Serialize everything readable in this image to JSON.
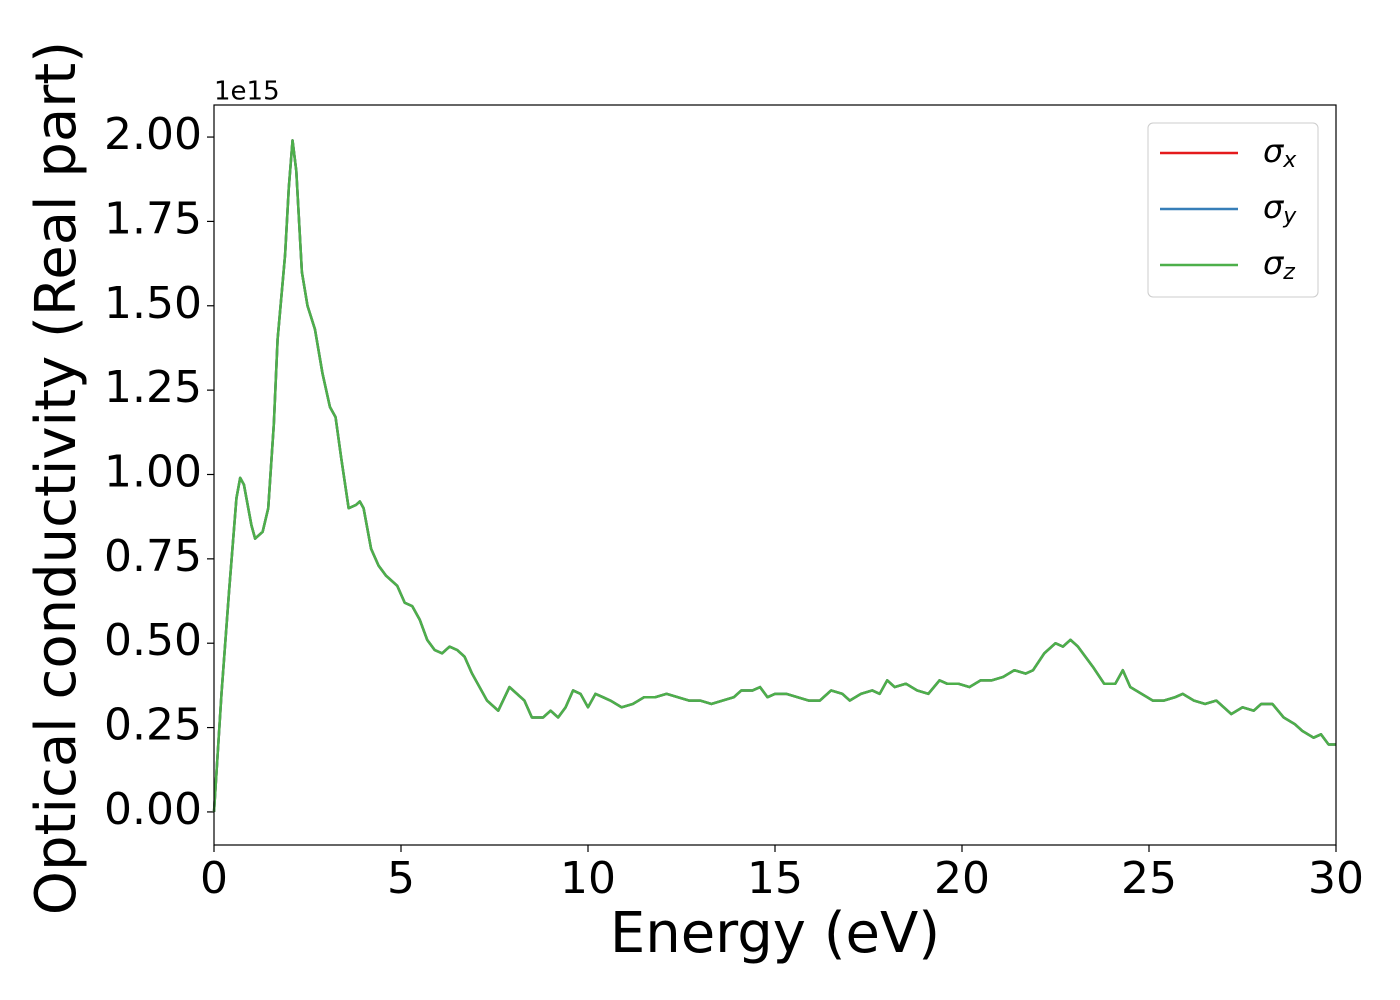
{
  "chart_data": {
    "type": "line",
    "xlabel": "Energy (eV)",
    "ylabel": "Optical conductivity (Real part)",
    "y_offset_label": "1e15",
    "legend": "upper right",
    "grid": false,
    "xlim": [
      0,
      30
    ],
    "xticks": [
      0,
      5,
      10,
      15,
      20,
      25,
      30
    ],
    "ylim": [
      -0.098,
      2.095
    ],
    "yticks": [
      {
        "value": 0,
        "label": "0.00"
      },
      0.25,
      {
        "value": 0.5,
        "label": "0.50"
      },
      0.75,
      {
        "value": 1,
        "label": "1.00"
      },
      1.25,
      {
        "value": 1.5,
        "label": "1.50"
      },
      1.75,
      {
        "value": 2,
        "label": "2.00"
      }
    ],
    "x": [
      0,
      0.2,
      0.4,
      0.6,
      0.7,
      0.8,
      1.0,
      1.1,
      1.3,
      1.45,
      1.6,
      1.7,
      1.9,
      2.0,
      2.1,
      2.2,
      2.35,
      2.5,
      2.7,
      2.9,
      3.1,
      3.25,
      3.4,
      3.6,
      3.8,
      3.9,
      4.0,
      4.2,
      4.4,
      4.6,
      4.9,
      5.1,
      5.3,
      5.5,
      5.7,
      5.9,
      6.1,
      6.3,
      6.5,
      6.7,
      6.9,
      7.1,
      7.3,
      7.6,
      7.9,
      8.1,
      8.3,
      8.5,
      8.8,
      9.0,
      9.2,
      9.4,
      9.6,
      9.8,
      10.0,
      10.2,
      10.4,
      10.6,
      10.9,
      11.2,
      11.5,
      11.8,
      12.1,
      12.4,
      12.7,
      13.0,
      13.3,
      13.6,
      13.9,
      14.1,
      14.4,
      14.6,
      14.8,
      15.0,
      15.3,
      15.6,
      15.9,
      16.2,
      16.5,
      16.8,
      17.0,
      17.3,
      17.6,
      17.8,
      18.0,
      18.2,
      18.5,
      18.8,
      19.1,
      19.4,
      19.6,
      19.9,
      20.2,
      20.5,
      20.8,
      21.1,
      21.4,
      21.7,
      21.9,
      22.2,
      22.5,
      22.7,
      22.9,
      23.1,
      23.3,
      23.5,
      23.8,
      24.1,
      24.3,
      24.5,
      24.8,
      25.1,
      25.4,
      25.7,
      25.9,
      26.2,
      26.5,
      26.8,
      27.0,
      27.2,
      27.5,
      27.8,
      28.0,
      28.3,
      28.6,
      28.9,
      29.1,
      29.4,
      29.6,
      29.8,
      30.0
    ],
    "series": [
      {
        "name": "σx",
        "color": "#e41a1c",
        "values": [
          0.0,
          0.35,
          0.65,
          0.93,
          0.99,
          0.97,
          0.85,
          0.81,
          0.83,
          0.9,
          1.15,
          1.4,
          1.65,
          1.85,
          1.99,
          1.9,
          1.6,
          1.5,
          1.43,
          1.3,
          1.2,
          1.17,
          1.05,
          0.9,
          0.91,
          0.92,
          0.9,
          0.78,
          0.73,
          0.7,
          0.67,
          0.62,
          0.61,
          0.57,
          0.51,
          0.48,
          0.47,
          0.49,
          0.48,
          0.46,
          0.41,
          0.37,
          0.33,
          0.3,
          0.37,
          0.35,
          0.33,
          0.28,
          0.28,
          0.3,
          0.28,
          0.31,
          0.36,
          0.35,
          0.31,
          0.35,
          0.34,
          0.33,
          0.31,
          0.32,
          0.34,
          0.34,
          0.35,
          0.34,
          0.33,
          0.33,
          0.32,
          0.33,
          0.34,
          0.36,
          0.36,
          0.37,
          0.34,
          0.35,
          0.35,
          0.34,
          0.33,
          0.33,
          0.36,
          0.35,
          0.33,
          0.35,
          0.36,
          0.35,
          0.39,
          0.37,
          0.38,
          0.36,
          0.35,
          0.39,
          0.38,
          0.38,
          0.37,
          0.39,
          0.39,
          0.4,
          0.42,
          0.41,
          0.42,
          0.47,
          0.5,
          0.49,
          0.51,
          0.49,
          0.46,
          0.43,
          0.38,
          0.38,
          0.42,
          0.37,
          0.35,
          0.33,
          0.33,
          0.34,
          0.35,
          0.33,
          0.32,
          0.33,
          0.31,
          0.29,
          0.31,
          0.3,
          0.32,
          0.32,
          0.28,
          0.26,
          0.24,
          0.22,
          0.23,
          0.2,
          0.2
        ]
      },
      {
        "name": "σy",
        "color": "#377eb8",
        "values": [
          0.0,
          0.35,
          0.65,
          0.93,
          0.99,
          0.97,
          0.85,
          0.81,
          0.83,
          0.9,
          1.15,
          1.4,
          1.65,
          1.85,
          1.99,
          1.9,
          1.6,
          1.5,
          1.43,
          1.3,
          1.2,
          1.17,
          1.05,
          0.9,
          0.91,
          0.92,
          0.9,
          0.78,
          0.73,
          0.7,
          0.67,
          0.62,
          0.61,
          0.57,
          0.51,
          0.48,
          0.47,
          0.49,
          0.48,
          0.46,
          0.41,
          0.37,
          0.33,
          0.3,
          0.37,
          0.35,
          0.33,
          0.28,
          0.28,
          0.3,
          0.28,
          0.31,
          0.36,
          0.35,
          0.31,
          0.35,
          0.34,
          0.33,
          0.31,
          0.32,
          0.34,
          0.34,
          0.35,
          0.34,
          0.33,
          0.33,
          0.32,
          0.33,
          0.34,
          0.36,
          0.36,
          0.37,
          0.34,
          0.35,
          0.35,
          0.34,
          0.33,
          0.33,
          0.36,
          0.35,
          0.33,
          0.35,
          0.36,
          0.35,
          0.39,
          0.37,
          0.38,
          0.36,
          0.35,
          0.39,
          0.38,
          0.38,
          0.37,
          0.39,
          0.39,
          0.4,
          0.42,
          0.41,
          0.42,
          0.47,
          0.5,
          0.49,
          0.51,
          0.49,
          0.46,
          0.43,
          0.38,
          0.38,
          0.42,
          0.37,
          0.35,
          0.33,
          0.33,
          0.34,
          0.35,
          0.33,
          0.32,
          0.33,
          0.31,
          0.29,
          0.31,
          0.3,
          0.32,
          0.32,
          0.28,
          0.26,
          0.24,
          0.22,
          0.23,
          0.2,
          0.2
        ]
      },
      {
        "name": "σz",
        "color": "#4daf4a",
        "values": [
          0.0,
          0.35,
          0.65,
          0.93,
          0.99,
          0.97,
          0.85,
          0.81,
          0.83,
          0.9,
          1.15,
          1.4,
          1.65,
          1.85,
          1.99,
          1.9,
          1.6,
          1.5,
          1.43,
          1.3,
          1.2,
          1.17,
          1.05,
          0.9,
          0.91,
          0.92,
          0.9,
          0.78,
          0.73,
          0.7,
          0.67,
          0.62,
          0.61,
          0.57,
          0.51,
          0.48,
          0.47,
          0.49,
          0.48,
          0.46,
          0.41,
          0.37,
          0.33,
          0.3,
          0.37,
          0.35,
          0.33,
          0.28,
          0.28,
          0.3,
          0.28,
          0.31,
          0.36,
          0.35,
          0.31,
          0.35,
          0.34,
          0.33,
          0.31,
          0.32,
          0.34,
          0.34,
          0.35,
          0.34,
          0.33,
          0.33,
          0.32,
          0.33,
          0.34,
          0.36,
          0.36,
          0.37,
          0.34,
          0.35,
          0.35,
          0.34,
          0.33,
          0.33,
          0.36,
          0.35,
          0.33,
          0.35,
          0.36,
          0.35,
          0.39,
          0.37,
          0.38,
          0.36,
          0.35,
          0.39,
          0.38,
          0.38,
          0.37,
          0.39,
          0.39,
          0.4,
          0.42,
          0.41,
          0.42,
          0.47,
          0.5,
          0.49,
          0.51,
          0.49,
          0.46,
          0.43,
          0.38,
          0.38,
          0.42,
          0.37,
          0.35,
          0.33,
          0.33,
          0.34,
          0.35,
          0.33,
          0.32,
          0.33,
          0.31,
          0.29,
          0.31,
          0.3,
          0.32,
          0.32,
          0.28,
          0.26,
          0.24,
          0.22,
          0.23,
          0.2,
          0.2
        ]
      }
    ]
  }
}
